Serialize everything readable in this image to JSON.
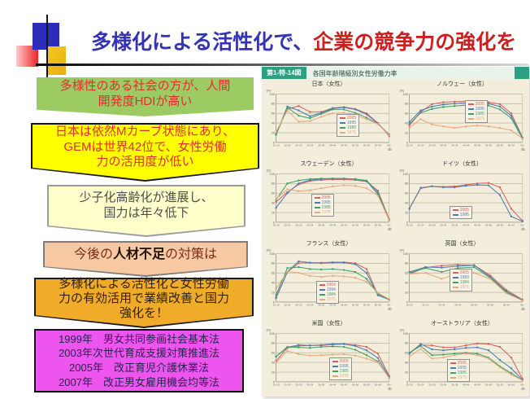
{
  "slide": {
    "title": {
      "blue_part": "多様化による活性化で、",
      "red_part": "企業の競争力の強化を"
    }
  },
  "palette": {
    "title_blue": "#3333b3",
    "title_red": "#cc1f1f",
    "box_green": "#9ccb63",
    "box_yellow": "#ffff00",
    "box_cream": "#ffffcc",
    "box_peach": "#f6c9a2",
    "box_gold": "#f0ac28",
    "box_magenta": "#ee55ee",
    "panel_beige": "#f2eedb",
    "panel_green": "#2f9e82"
  },
  "left_boxes": [
    {
      "text": "多様性のある社会の方が、人間\n開発度HDIが高い"
    },
    {
      "text": "日本は依然Mカーブ状態にあり、\nGEMは世界42位で、女性労働\n力の活用度が低い"
    },
    {
      "text": "少子化高齢化が進展し、\n国力は年々低下"
    },
    {
      "prefix": "今後の",
      "bold": "人材不足",
      "suffix": "の対策は"
    },
    {
      "text": "多様化による活性化と女性労働\n力の有効活用で業績改善と国力\n強化を！"
    },
    {
      "text": "1999年　男女共同参画社会基本法\n2003年次世代育成支援対策推進法\n2005年　改正育児介護休業法\n2007年　改正男女雇用機会均等法"
    }
  ],
  "chart_panel": {
    "figure_label": "第1-特-14図",
    "figure_title": "各国年齢階級別女性労働力率"
  },
  "chart_data": {
    "type": "line",
    "title": "各国年齢階級別女性労働力率",
    "ylabel": "(%)",
    "xlabel_suffix": "(歳)",
    "ylim": [
      0,
      100
    ],
    "grid": true,
    "legend_position": "inside",
    "colors": [
      "#d9605f",
      "#4a7db5",
      "#3fa06a",
      "#e8a87c"
    ],
    "charts": [
      {
        "id": "japan",
        "title": "日本（女性）",
        "categories": [
          "15~19",
          "20~24",
          "25~29",
          "30~34",
          "35~39",
          "40~44",
          "45~49",
          "50~54",
          "55~59",
          "60~64",
          "65~"
        ],
        "legend_pos": [
          0.56,
          0.42
        ],
        "series": [
          {
            "name": "2005",
            "values": [
              17,
              69,
              75,
              63,
              63,
              71,
              73,
              69,
              60,
              40,
              13
            ]
          },
          {
            "name": "1995",
            "values": [
              16,
              74,
              66,
              54,
              61,
              70,
              72,
              68,
              58,
              39,
              16
            ]
          },
          {
            "name": "1985",
            "values": [
              16,
              72,
              55,
              50,
              59,
              68,
              68,
              61,
              51,
              38,
              16
            ]
          },
          {
            "name": "1975",
            "values": [
              22,
              66,
              43,
              44,
              53,
              60,
              61,
              57,
              48,
              38,
              15
            ]
          }
        ]
      },
      {
        "id": "norway",
        "title": "ノルウェー（女性）",
        "categories": [
          "15~19",
          "20~24",
          "25~29",
          "30~34",
          "35~39",
          "40~44",
          "45~49",
          "50~54",
          "55~59",
          "60~64",
          "65~"
        ],
        "legend_pos": [
          0.52,
          0.25
        ],
        "series": [
          {
            "name": "2005",
            "values": [
              35,
              63,
              79,
              83,
              84,
              85,
              84,
              83,
              79,
              60,
              10
            ]
          },
          {
            "name": "1995",
            "values": [
              42,
              66,
              74,
              78,
              80,
              82,
              82,
              80,
              74,
              55,
              9
            ]
          },
          {
            "name": "1985",
            "values": [
              38,
              61,
              69,
              73,
              75,
              77,
              78,
              76,
              68,
              50,
              8
            ]
          },
          {
            "name": "1975",
            "values": [
              30,
              48,
              37,
              33,
              30,
              33,
              35,
              33,
              30,
              25,
              8
            ]
          }
        ]
      },
      {
        "id": "sweden",
        "title": "スウェーデン（女性）",
        "categories": [
          "15~19",
          "20~24",
          "25~29",
          "30~34",
          "35~39",
          "40~44",
          "45~49",
          "50~54",
          "55~59",
          "60~64",
          "65~"
        ],
        "legend_pos": [
          0.36,
          0.42
        ],
        "series": [
          {
            "name": "2005",
            "values": [
              42,
              62,
              78,
              85,
              87,
              88,
              88,
              87,
              84,
              65,
              6
            ]
          },
          {
            "name": "1995",
            "values": [
              30,
              60,
              80,
              87,
              89,
              90,
              90,
              89,
              85,
              58,
              4
            ]
          },
          {
            "name": "1985",
            "values": [
              46,
              80,
              86,
              89,
              90,
              90,
              90,
              89,
              86,
              62,
              4
            ]
          },
          {
            "name": "1975",
            "values": [
              48,
              68,
              64,
              66,
              70,
              74,
              76,
              75,
              70,
              55,
              4
            ]
          }
        ]
      },
      {
        "id": "germany",
        "title": "ドイツ（女性）",
        "categories": [
          "15~19",
          "20~24",
          "25~29",
          "30~34",
          "35~39",
          "40~44",
          "45~49",
          "50~54",
          "55~59",
          "60~64",
          "65~"
        ],
        "legend_pos": [
          0.4,
          0.58
        ],
        "series": [
          {
            "name": "2005",
            "values": [
              28,
              70,
              74,
              73,
              74,
              77,
              80,
              81,
              72,
              28,
              3
            ]
          },
          {
            "name": "1995",
            "values": [
              28,
              71,
              74,
              72,
              72,
              75,
              77,
              76,
              56,
              12,
              2
            ]
          }
        ]
      },
      {
        "id": "france",
        "title": "フランス（女性）",
        "categories": [
          "15~19",
          "20~24",
          "25~29",
          "30~34",
          "35~39",
          "40~44",
          "45~49",
          "50~54",
          "55~59",
          "60~64",
          "65~"
        ],
        "legend_pos": [
          0.4,
          0.52
        ],
        "series": [
          {
            "name": "2004",
            "values": [
              10,
              62,
              80,
              81,
              81,
              82,
              82,
              80,
              68,
              15,
              6
            ]
          },
          {
            "name": "1994",
            "values": [
              8,
              62,
              84,
              81,
              80,
              81,
              81,
              78,
              60,
              14,
              5
            ]
          },
          {
            "name": "1984",
            "values": [
              15,
              70,
              72,
              68,
              67,
              68,
              66,
              62,
              48,
              17,
              5
            ]
          },
          {
            "name": "1975",
            "values": [
              28,
              63,
              60,
              54,
              52,
              54,
              53,
              50,
              42,
              19,
              6
            ]
          }
        ]
      },
      {
        "id": "uk",
        "title": "英国（女性）",
        "categories": [
          "16~19",
          "20~24",
          "25~34",
          "35~44",
          "45~54",
          "55~59",
          "60~64",
          "65~"
        ],
        "legend_pos": [
          0.4,
          0.36
        ],
        "series": [
          {
            "name": "2005",
            "values": [
              58,
              71,
              75,
              77,
              76,
              55,
              25,
              5
            ]
          },
          {
            "name": "1993",
            "values": [
              62,
              72,
              71,
              74,
              76,
              52,
              22,
              4
            ]
          },
          {
            "name": "1984",
            "values": [
              60,
              70,
              62,
              70,
              72,
              50,
              20,
              3
            ]
          },
          {
            "name": "1971",
            "values": [
              58,
              60,
              48,
              58,
              60,
              48,
              18,
              3
            ]
          }
        ]
      },
      {
        "id": "us",
        "title": "米国（女性）",
        "categories": [
          "15~19",
          "20~24",
          "25~29",
          "30~34",
          "35~39",
          "40~44",
          "45~49",
          "50~54",
          "55~59",
          "60~64",
          "65~"
        ],
        "legend_pos": [
          0.5,
          0.48
        ],
        "series": [
          {
            "name": "2005",
            "values": [
              43,
              70,
              74,
              75,
              75,
              77,
              78,
              76,
              72,
              58,
              12
            ]
          },
          {
            "name": "1995",
            "values": [
              52,
              71,
              76,
              75,
              76,
              78,
              78,
              74,
              65,
              49,
              10
            ]
          },
          {
            "name": "1985",
            "values": [
              52,
              72,
              71,
              70,
              72,
              73,
              72,
              66,
              55,
              42,
              8
            ]
          },
          {
            "name": "1975",
            "values": [
              40,
              64,
              57,
              54,
              55,
              56,
              57,
              54,
              48,
              40,
              8
            ]
          }
        ]
      },
      {
        "id": "australia",
        "title": "オーストラリア（女性）",
        "categories": [
          "15~19",
          "20~24",
          "25~29",
          "30~34",
          "35~39",
          "40~44",
          "45~49",
          "50~54",
          "55~59",
          "60~64",
          "65~"
        ],
        "legend_pos": [
          0.38,
          0.5
        ],
        "series": [
          {
            "name": "2005",
            "values": [
              60,
              76,
              75,
              71,
              71,
              75,
              79,
              78,
              72,
              50,
              6
            ]
          },
          {
            "name": "1995",
            "values": [
              58,
              78,
              67,
              65,
              67,
              70,
              71,
              65,
              45,
              28,
              4
            ]
          },
          {
            "name": "1985",
            "values": [
              60,
              74,
              55,
              56,
              58,
              60,
              58,
              50,
              32,
              18,
              3
            ]
          },
          {
            "name": "1975",
            "values": [
              52,
              68,
              48,
              50,
              55,
              58,
              55,
              48,
              30,
              15,
              3
            ]
          }
        ]
      }
    ]
  }
}
